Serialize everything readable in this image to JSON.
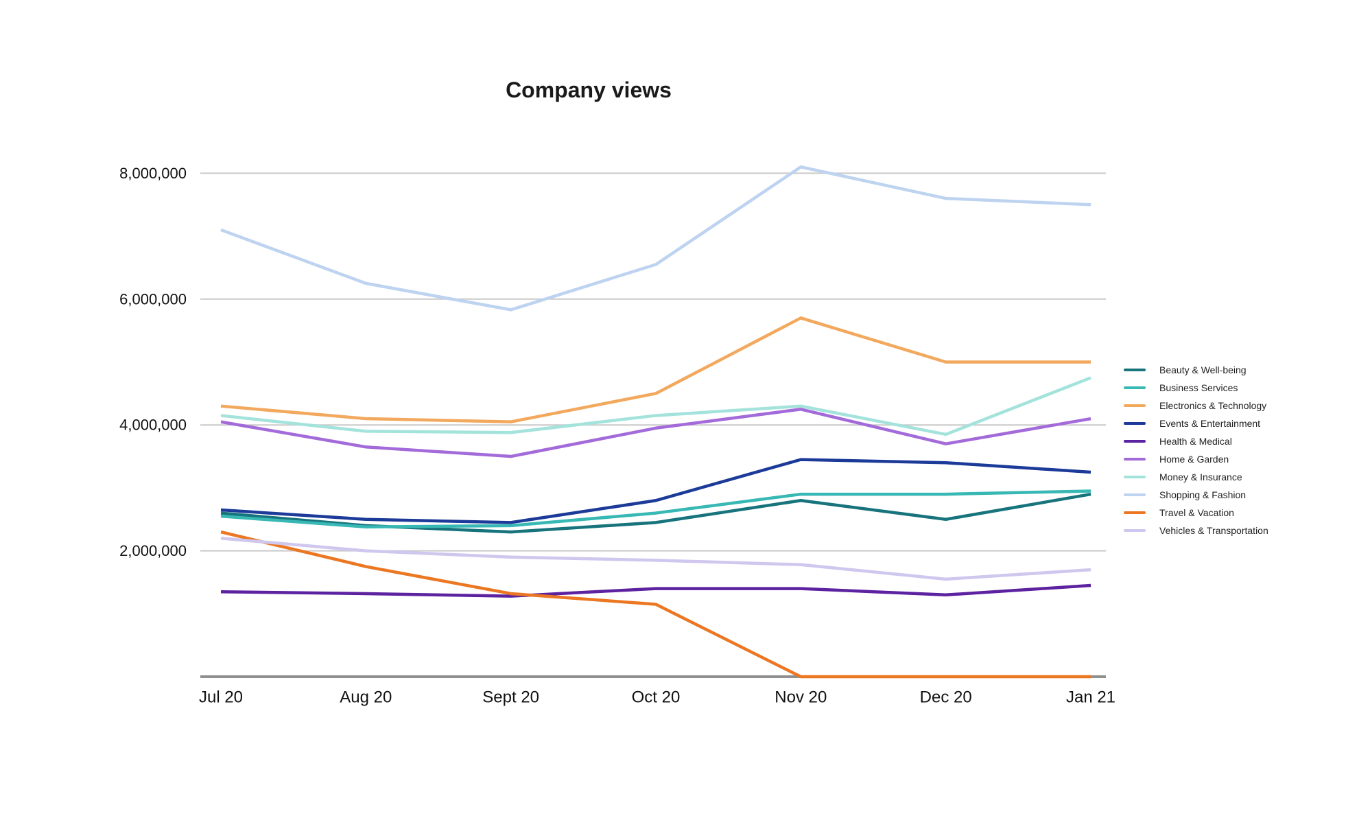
{
  "title": "Company views",
  "chart_data": {
    "type": "line",
    "title": "Company views",
    "x_categories": [
      "Jul 20",
      "Aug 20",
      "Sept 20",
      "Oct 20",
      "Nov 20",
      "Dec 20",
      "Jan 21"
    ],
    "y_ticks": [
      {
        "value": 2000000,
        "label": "2,000,000"
      },
      {
        "value": 4000000,
        "label": "4,000,000"
      },
      {
        "value": 6000000,
        "label": "6,000,000"
      },
      {
        "value": 8000000,
        "label": "8,000,000"
      }
    ],
    "ylim": [
      0,
      8800000
    ],
    "grid": true,
    "legend_position": "right",
    "series": [
      {
        "name": "Beauty & Well-being",
        "color": "#17737c",
        "values": [
          2600000,
          2400000,
          2300000,
          2450000,
          2800000,
          2500000,
          2900000
        ]
      },
      {
        "name": "Business Services",
        "color": "#38b8b4",
        "values": [
          2550000,
          2380000,
          2400000,
          2600000,
          2900000,
          2900000,
          2950000
        ]
      },
      {
        "name": "Electronics & Technology",
        "color": "#f2a95e",
        "values": [
          4300000,
          4100000,
          4050000,
          4500000,
          5700000,
          5000000,
          5000000
        ]
      },
      {
        "name": "Events & Entertainment",
        "color": "#1c3b99",
        "values": [
          2650000,
          2500000,
          2450000,
          2800000,
          3450000,
          3400000,
          3250000
        ]
      },
      {
        "name": "Health & Medical",
        "color": "#5d22a0",
        "values": [
          1350000,
          1320000,
          1280000,
          1400000,
          1400000,
          1300000,
          1450000
        ]
      },
      {
        "name": "Home & Garden",
        "color": "#a36bd9",
        "values": [
          4050000,
          3650000,
          3500000,
          3950000,
          4250000,
          3700000,
          4100000
        ]
      },
      {
        "name": "Money & Insurance",
        "color": "#a3e3dc",
        "values": [
          4150000,
          3900000,
          3880000,
          4150000,
          4300000,
          3850000,
          4750000
        ]
      },
      {
        "name": "Shopping & Fashion",
        "color": "#bdd3f0",
        "values": [
          7100000,
          6250000,
          5830000,
          6550000,
          8100000,
          7600000,
          7500000
        ]
      },
      {
        "name": "Travel & Vacation",
        "color": "#ec7723",
        "values": [
          2300000,
          1750000,
          1320000,
          1150000,
          0,
          0,
          0
        ]
      },
      {
        "name": "Vehicles & Transportation",
        "color": "#d0c7ef",
        "values": [
          2200000,
          2000000,
          1900000,
          1850000,
          1780000,
          1550000,
          1700000
        ]
      }
    ]
  },
  "style_colors": {
    "grid": "#c9c9c9",
    "axis": "#909090",
    "tick_text": "#111111",
    "legend_text": "#1f1f1f"
  }
}
